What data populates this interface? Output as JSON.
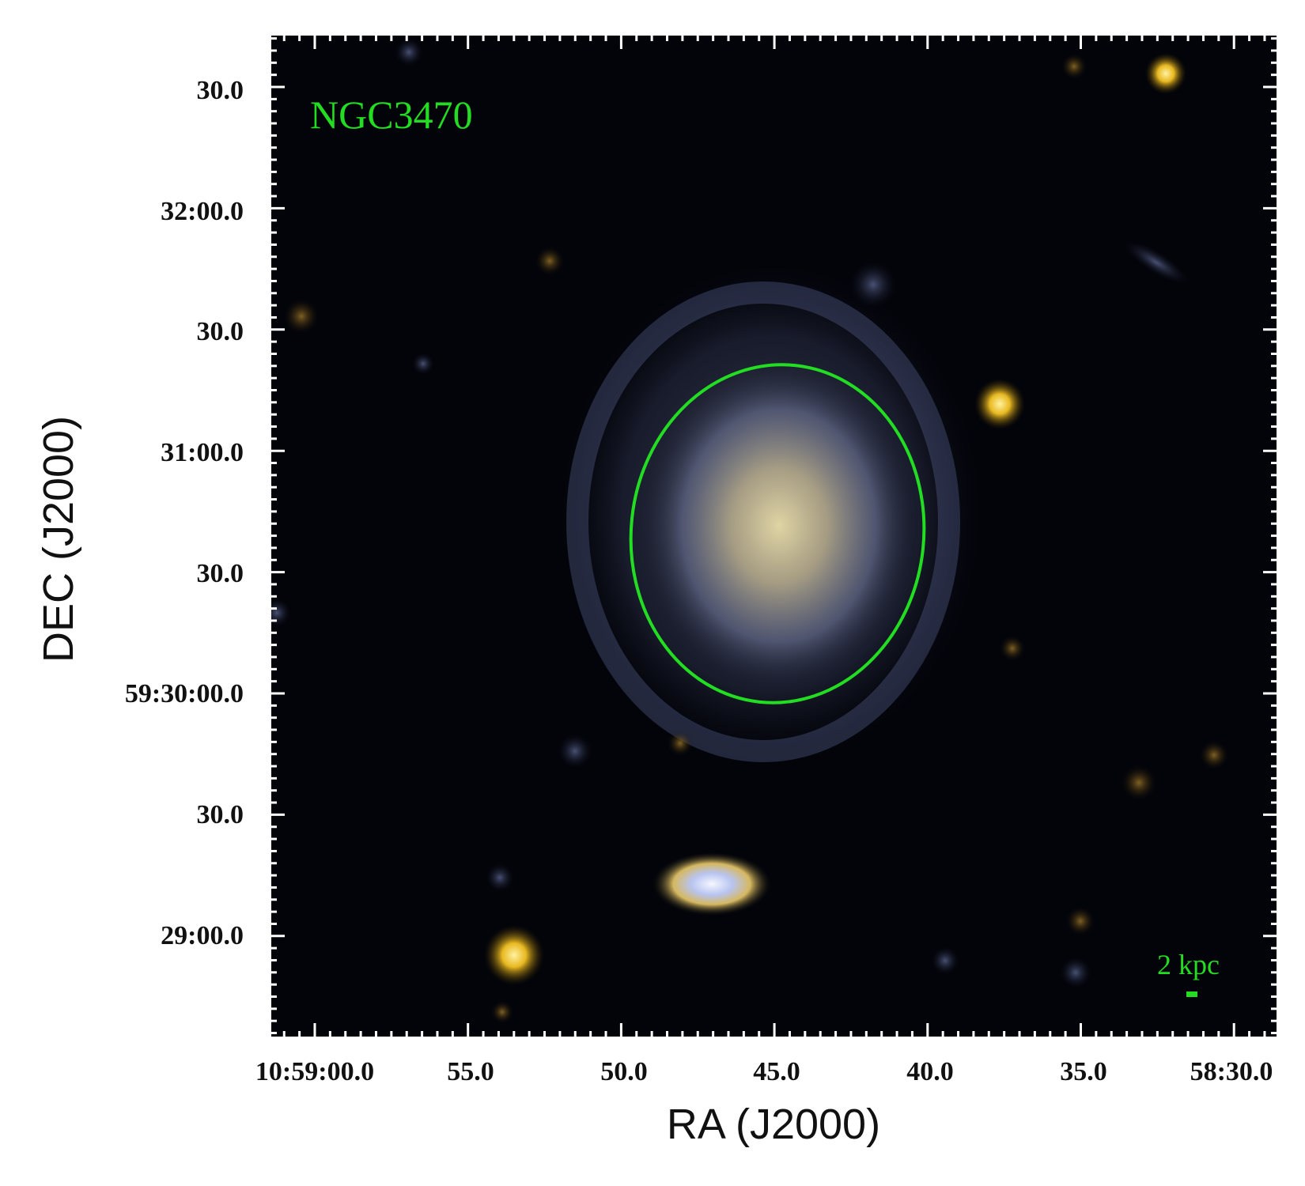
{
  "image": {
    "description_label": "NGC3470",
    "scale_bar_label": "2 kpc",
    "overlay_color": "#22dd22"
  },
  "axes": {
    "x_title": "RA (J2000)",
    "y_title": "DEC (J2000)",
    "x_ticks": [
      "10:59:00.0",
      "55.0",
      "50.0",
      "45.0",
      "40.0",
      "35.0",
      "58:30.0"
    ],
    "y_ticks": [
      "30.0",
      "32:00.0",
      "30.0",
      "31:00.0",
      "30.0",
      "59:30:00.0",
      "30.0",
      "29:00.0"
    ]
  }
}
